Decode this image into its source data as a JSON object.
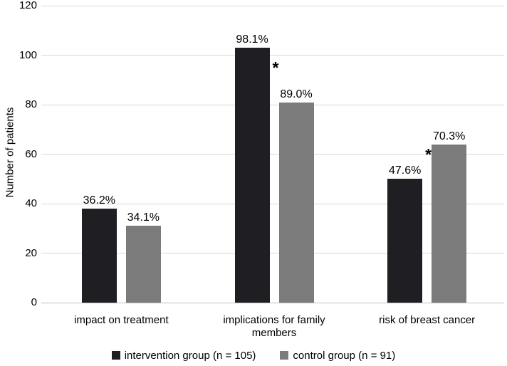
{
  "figure": {
    "background_color": "#ffffff",
    "text_color": "#000000"
  },
  "chart_data": {
    "type": "bar",
    "title": "",
    "xlabel": "",
    "ylabel": "Number of patients",
    "ylim": [
      0,
      120
    ],
    "yticks": [
      0,
      20,
      40,
      60,
      80,
      100,
      120
    ],
    "grid": true,
    "gridline_color": "#d9d9d9",
    "axis_line_color": "#bfbfbf",
    "legend_position": "bottom",
    "categories": [
      "impact on treatment",
      "implications for family members",
      "risk of breast cancer"
    ],
    "series": [
      {
        "name": "intervention group (n = 105)",
        "color": "#1f1f23",
        "values": [
          38,
          103,
          50
        ],
        "value_labels": [
          "36.2%",
          "98.1%",
          "47.6%"
        ]
      },
      {
        "name": "control group (n = 91)",
        "color": "#7b7b7b",
        "values": [
          31,
          81,
          64
        ],
        "value_labels": [
          "34.1%",
          "89.0%",
          "70.3%"
        ]
      }
    ],
    "significance_markers": [
      {
        "category_index": 1,
        "symbol": "*"
      },
      {
        "category_index": 2,
        "symbol": "*"
      }
    ]
  }
}
